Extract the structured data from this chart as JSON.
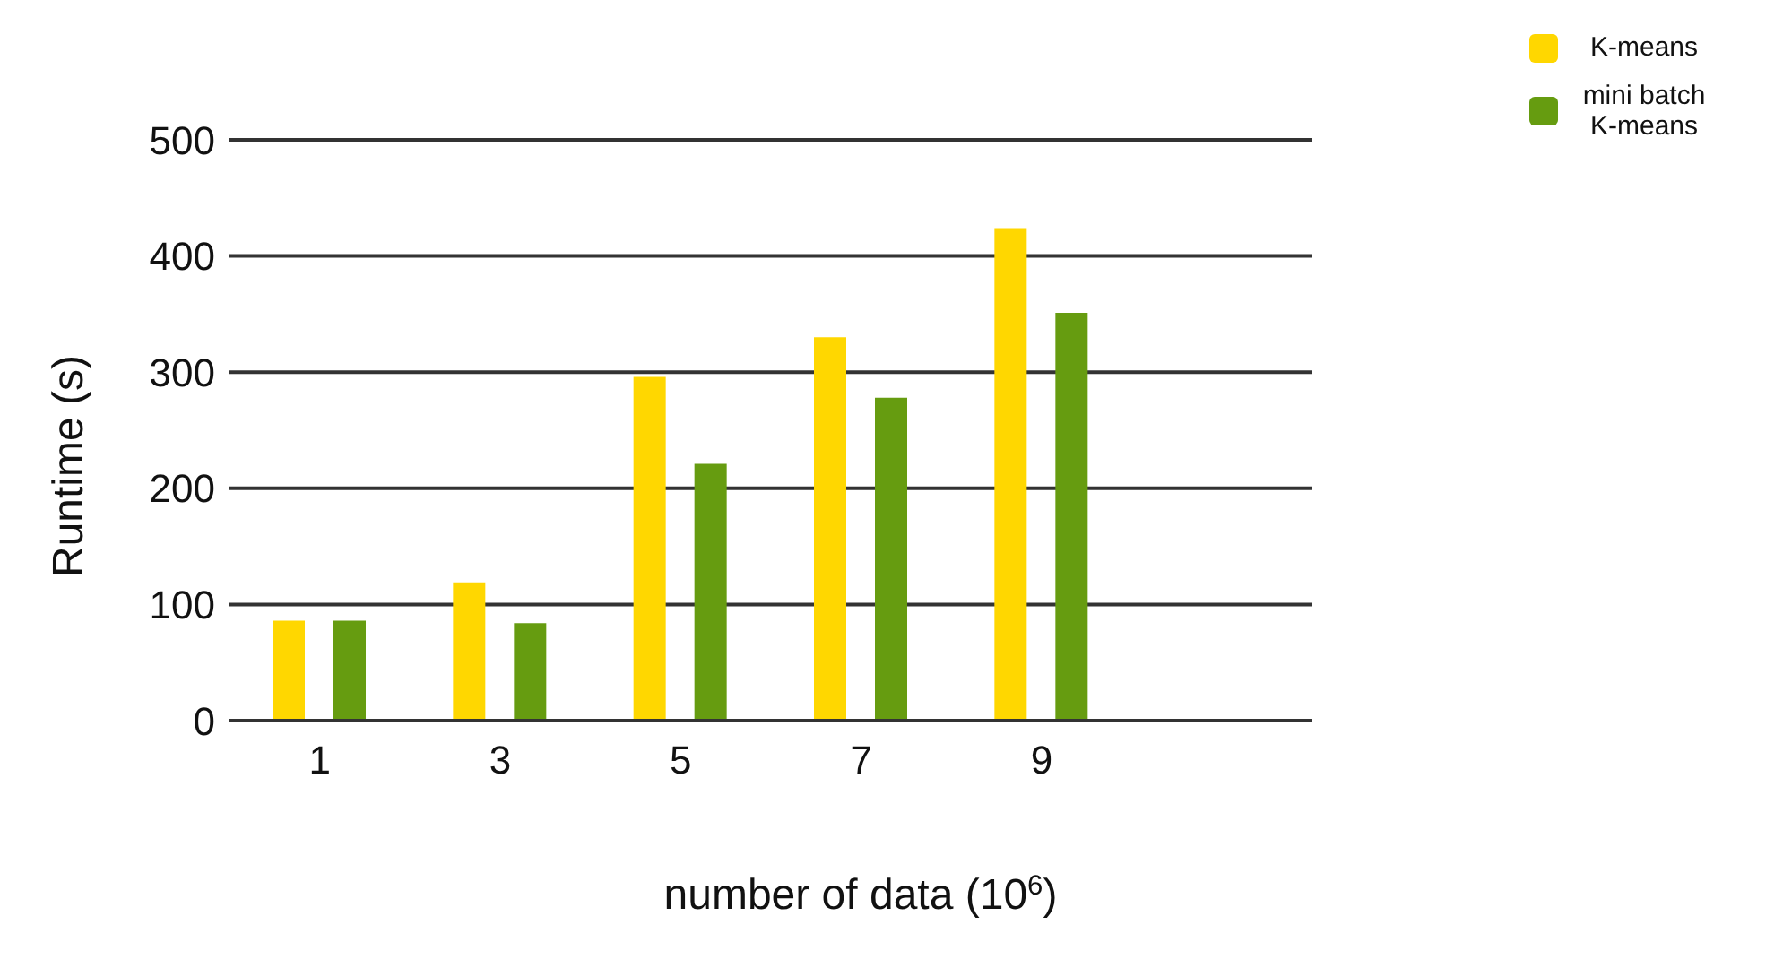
{
  "chart_data": {
    "type": "bar",
    "xlabel": "number of data (10$^{6}$)",
    "ylabel": "Runtime (s)",
    "categories": [
      "1",
      "3",
      "5",
      "7",
      "9",
      null
    ],
    "series": [
      {
        "name": "K-means",
        "color": "#ffd700",
        "values": [
          86,
          119,
          296,
          330,
          424,
          null
        ]
      },
      {
        "name": "mini batch K-means",
        "color": "#669c10",
        "values": [
          86,
          84,
          221,
          278,
          351,
          null
        ]
      }
    ],
    "ylim": [
      0,
      500
    ],
    "yticks": [
      0,
      100,
      200,
      300,
      400,
      500
    ],
    "grid": "y",
    "legend": "top right"
  }
}
